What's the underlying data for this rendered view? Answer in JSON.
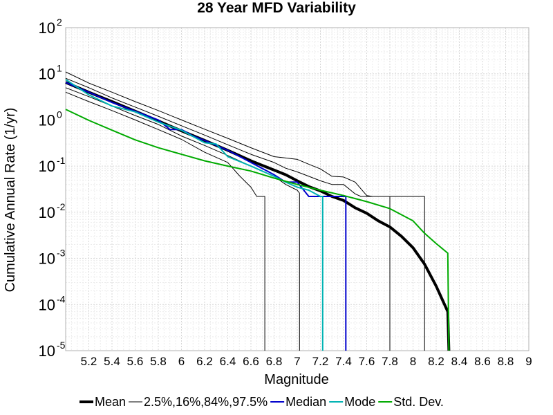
{
  "chart_data": {
    "type": "line",
    "title": "28 Year MFD Variability",
    "xlabel": "Magnitude",
    "ylabel": "Cumulative Annual Rate (1/yr)",
    "xlim": [
      5.0,
      9.0
    ],
    "ylim": [
      1e-05,
      100
    ],
    "yscale": "log",
    "grid": true,
    "legend_position": "bottom",
    "x_ticks": [
      "5.2",
      "5.4",
      "5.6",
      "5.8",
      "6",
      "6.2",
      "6.4",
      "6.6",
      "6.8",
      "7",
      "7.2",
      "7.4",
      "7.6",
      "7.8",
      "8",
      "8.2",
      "8.4",
      "8.6",
      "8.8",
      "9"
    ],
    "x_tick_values": [
      5.2,
      5.4,
      5.6,
      5.8,
      6.0,
      6.2,
      6.4,
      6.6,
      6.8,
      7.0,
      7.2,
      7.4,
      7.6,
      7.8,
      8.0,
      8.2,
      8.4,
      8.6,
      8.8,
      9.0
    ],
    "y_ticks": [
      {
        "base": "10",
        "exp": "-5",
        "value": 1e-05
      },
      {
        "base": "10",
        "exp": "-4",
        "value": 0.0001
      },
      {
        "base": "10",
        "exp": "-3",
        "value": 0.001
      },
      {
        "base": "10",
        "exp": "-2",
        "value": 0.01
      },
      {
        "base": "10",
        "exp": "-1",
        "value": 0.1
      },
      {
        "base": "10",
        "exp": "0",
        "value": 1
      },
      {
        "base": "10",
        "exp": "1",
        "value": 10
      },
      {
        "base": "10",
        "exp": "2",
        "value": 100
      }
    ],
    "legend": [
      {
        "label": "Mean",
        "color": "#000000",
        "width": 4
      },
      {
        "label": "2.5%,16%,84%,97.5%",
        "color": "#000000",
        "width": 1
      },
      {
        "label": "Median",
        "color": "#0000cc",
        "width": 2
      },
      {
        "label": "Mode",
        "color": "#00b3b3",
        "width": 2
      },
      {
        "label": "Std. Dev.",
        "color": "#00aa00",
        "width": 2
      }
    ],
    "series": [
      {
        "name": "Mean",
        "color": "#000000",
        "width": 4,
        "x": [
          5.0,
          5.2,
          5.4,
          5.6,
          5.8,
          6.0,
          6.2,
          6.4,
          6.6,
          6.8,
          6.9,
          7.0,
          7.1,
          7.2,
          7.3,
          7.4,
          7.5,
          7.6,
          7.7,
          7.8,
          7.9,
          8.0,
          8.1,
          8.2,
          8.3,
          8.31
        ],
        "y": [
          6.5,
          4.0,
          2.5,
          1.55,
          0.95,
          0.58,
          0.36,
          0.22,
          0.13,
          0.082,
          0.065,
          0.048,
          0.036,
          0.029,
          0.022,
          0.018,
          0.0125,
          0.0095,
          0.0065,
          0.0048,
          0.003,
          0.0017,
          0.00075,
          0.00025,
          7e-05,
          1e-05
        ]
      },
      {
        "name": "",
        "color": "#000000",
        "width": 1,
        "x": [
          5.0,
          5.2,
          5.4,
          5.6,
          5.8,
          6.0,
          6.2,
          6.4,
          6.6,
          6.8,
          6.9,
          7.0,
          7.1,
          7.2,
          7.3,
          7.4,
          7.5,
          7.6,
          7.65,
          7.7,
          8.1,
          8.1
        ],
        "y": [
          11,
          6.3,
          4.0,
          2.5,
          1.6,
          1.0,
          0.63,
          0.4,
          0.25,
          0.16,
          0.15,
          0.14,
          0.11,
          0.087,
          0.06,
          0.058,
          0.045,
          0.023,
          0.022,
          0.022,
          0.022,
          1e-05
        ]
      },
      {
        "name": "",
        "color": "#000000",
        "width": 1,
        "x": [
          5.0,
          5.2,
          5.4,
          5.6,
          5.8,
          6.0,
          6.2,
          6.4,
          6.6,
          6.8,
          6.9,
          7.0,
          7.1,
          7.2,
          7.3,
          7.4,
          7.5,
          7.55,
          7.8,
          7.8
        ],
        "y": [
          8.0,
          5.0,
          3.0,
          1.9,
          1.2,
          0.75,
          0.47,
          0.29,
          0.18,
          0.12,
          0.09,
          0.075,
          0.06,
          0.048,
          0.04,
          0.04,
          0.025,
          0.022,
          0.022,
          1e-05
        ]
      },
      {
        "name": "",
        "color": "#000000",
        "width": 1,
        "x": [
          5.0,
          5.2,
          5.4,
          5.6,
          5.8,
          6.0,
          6.2,
          6.4,
          6.6,
          6.8,
          6.9,
          7.0,
          7.02,
          7.02
        ],
        "y": [
          5.0,
          3.2,
          2.0,
          1.25,
          0.8,
          0.45,
          0.28,
          0.17,
          0.1,
          0.06,
          0.04,
          0.03,
          0.026,
          1e-05
        ]
      },
      {
        "name": "",
        "color": "#000000",
        "width": 1,
        "x": [
          5.0,
          5.2,
          5.4,
          5.6,
          5.8,
          6.0,
          6.2,
          6.4,
          6.5,
          6.6,
          6.65,
          6.72,
          6.72
        ],
        "y": [
          4.0,
          2.5,
          1.6,
          1.0,
          0.62,
          0.38,
          0.2,
          0.12,
          0.062,
          0.035,
          0.022,
          0.022,
          1e-05
        ]
      },
      {
        "name": "Median",
        "color": "#0000cc",
        "width": 2,
        "x": [
          5.0,
          5.2,
          5.4,
          5.6,
          5.8,
          5.9,
          6.0,
          6.1,
          6.2,
          6.4,
          6.6,
          6.8,
          6.9,
          7.0,
          7.1,
          7.25,
          7.3,
          7.4,
          7.42,
          7.42
        ],
        "y": [
          6.5,
          4.0,
          2.4,
          1.55,
          1.0,
          0.62,
          0.62,
          0.45,
          0.36,
          0.22,
          0.12,
          0.065,
          0.045,
          0.045,
          0.022,
          0.022,
          0.022,
          0.022,
          0.022,
          1e-05
        ]
      },
      {
        "name": "Mode",
        "color": "#00b3b3",
        "width": 2,
        "x": [
          5.0,
          5.2,
          5.4,
          5.6,
          5.8,
          6.0,
          6.2,
          6.3,
          6.4,
          6.6,
          6.8,
          6.9,
          7.0,
          7.1,
          7.2,
          7.22,
          7.22
        ],
        "y": [
          7.5,
          3.5,
          2.0,
          1.5,
          0.9,
          0.6,
          0.32,
          0.3,
          0.16,
          0.1,
          0.06,
          0.045,
          0.035,
          0.03,
          0.022,
          0.022,
          1e-05
        ]
      },
      {
        "name": "Std. Dev.",
        "color": "#00aa00",
        "width": 2,
        "x": [
          5.0,
          5.2,
          5.4,
          5.6,
          5.8,
          6.0,
          6.2,
          6.4,
          6.6,
          6.8,
          7.0,
          7.2,
          7.4,
          7.6,
          7.8,
          8.0,
          8.1,
          8.2,
          8.3,
          8.31
        ],
        "y": [
          1.7,
          0.98,
          0.6,
          0.37,
          0.25,
          0.18,
          0.13,
          0.1,
          0.078,
          0.055,
          0.04,
          0.03,
          0.023,
          0.017,
          0.012,
          0.0065,
          0.0035,
          0.0021,
          0.0013,
          1e-05
        ]
      }
    ]
  }
}
